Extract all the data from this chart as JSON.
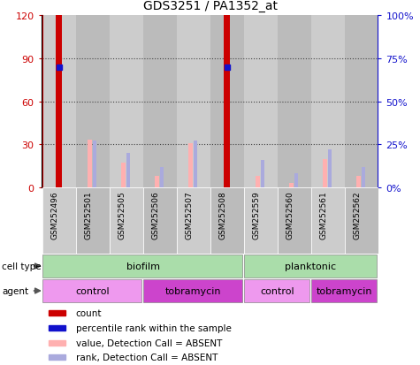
{
  "title": "GDS3251 / PA1352_at",
  "samples": [
    "GSM252496",
    "GSM252501",
    "GSM252505",
    "GSM252506",
    "GSM252507",
    "GSM252508",
    "GSM252559",
    "GSM252560",
    "GSM252561",
    "GSM252562"
  ],
  "count_values": [
    120,
    0,
    0,
    0,
    0,
    120,
    0,
    0,
    0,
    0
  ],
  "percentile_values": [
    70,
    0,
    0,
    0,
    0,
    70,
    0,
    0,
    0,
    0
  ],
  "absent_value_bars": [
    0,
    33,
    17,
    8,
    31,
    0,
    8,
    3,
    20,
    8
  ],
  "absent_rank_bars": [
    0,
    27,
    20,
    12,
    27,
    0,
    16,
    8,
    22,
    12
  ],
  "count_color": "#cc0000",
  "percentile_color": "#1111cc",
  "absent_value_color": "#ffb0b0",
  "absent_rank_color": "#aaaadd",
  "ylim_left": [
    0,
    120
  ],
  "ylim_right": [
    0,
    100
  ],
  "yticks_left": [
    0,
    30,
    60,
    90,
    120
  ],
  "yticks_right": [
    0,
    25,
    50,
    75,
    100
  ],
  "ytick_labels_left": [
    "0",
    "30",
    "60",
    "90",
    "120"
  ],
  "ytick_labels_right": [
    "0%",
    "25%",
    "50%",
    "75%",
    "100%"
  ],
  "cell_type_groups": [
    {
      "label": "biofilm",
      "start": 0,
      "end": 6,
      "color": "#aaddaa"
    },
    {
      "label": "planktonic",
      "start": 6,
      "end": 10,
      "color": "#aaddaa"
    }
  ],
  "agent_groups": [
    {
      "label": "control",
      "start": 0,
      "end": 3,
      "color": "#ee99ee"
    },
    {
      "label": "tobramycin",
      "start": 3,
      "end": 6,
      "color": "#cc44cc"
    },
    {
      "label": "control",
      "start": 6,
      "end": 8,
      "color": "#ee99ee"
    },
    {
      "label": "tobramycin",
      "start": 8,
      "end": 10,
      "color": "#cc44cc"
    }
  ],
  "legend_items": [
    {
      "label": "count",
      "color": "#cc0000"
    },
    {
      "label": "percentile rank within the sample",
      "color": "#1111cc"
    },
    {
      "label": "value, Detection Call = ABSENT",
      "color": "#ffb0b0"
    },
    {
      "label": "rank, Detection Call = ABSENT",
      "color": "#aaaadd"
    }
  ],
  "col_bg_color": "#cccccc",
  "col_bg_dark": "#bbbbbb",
  "plot_bg_color": "#ffffff",
  "left_axis_color": "#cc0000",
  "right_axis_color": "#1111cc",
  "grid_color": "#444444"
}
